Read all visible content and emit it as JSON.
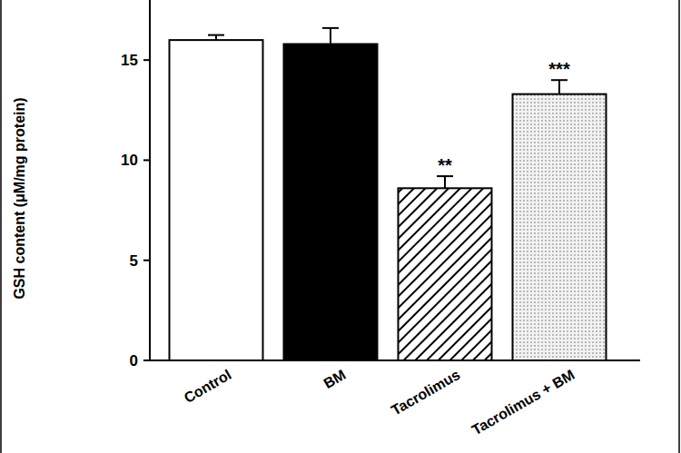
{
  "chart_data": {
    "type": "bar",
    "y_label": "GSH content (μM/mg protein)",
    "categories": [
      "Control",
      "BM",
      "Tacrolimus",
      "Tacrolimus + BM"
    ],
    "values": [
      16.0,
      15.8,
      8.6,
      13.3
    ],
    "errors": [
      0.25,
      0.8,
      0.6,
      0.7
    ],
    "colors": [
      "#ffffff",
      "#000000",
      "#ffffff",
      "#ebebeb"
    ],
    "annotations": [
      {
        "text": "**",
        "category": "Tacrolimus"
      },
      {
        "text": "***",
        "category": "Tacrolimus + BM"
      }
    ],
    "ylim": [
      0,
      18
    ],
    "yticks": [
      0,
      5,
      10,
      15
    ],
    "grid": false
  }
}
